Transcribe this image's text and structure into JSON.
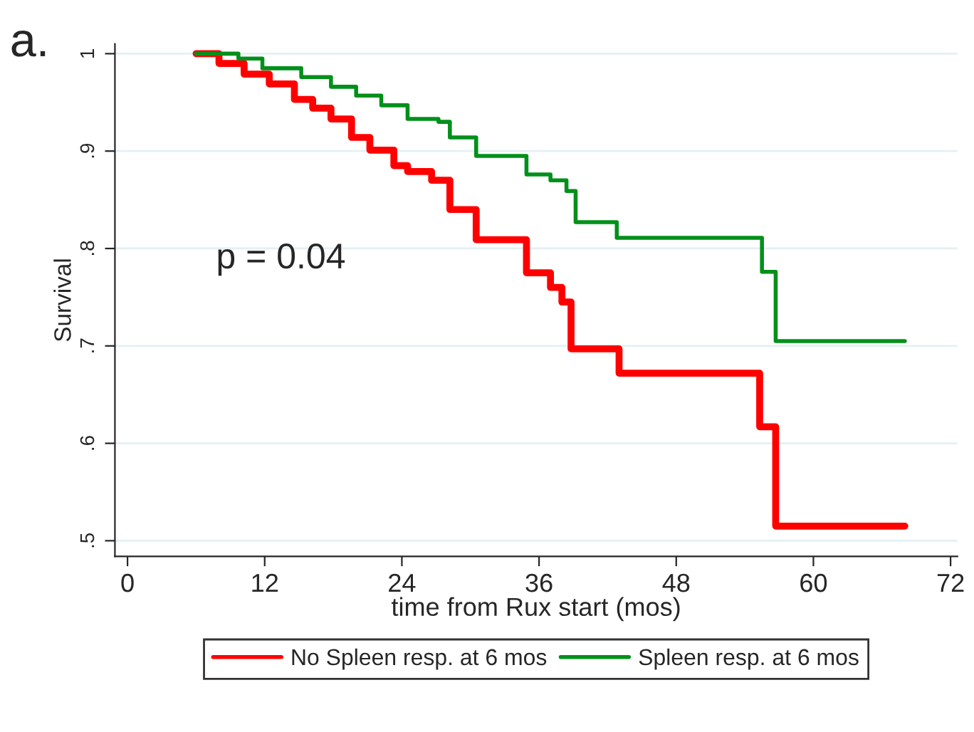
{
  "chart_data": {
    "type": "step",
    "xlabel": "time from Rux start (mos)",
    "ylabel": "Survival",
    "annotations": [
      "a.",
      "p = 0.04"
    ],
    "series": [
      {
        "name": "No Spleen resp. at 6 mos",
        "color": "#ff0000",
        "x": [
          6,
          8,
          10.2,
          12.4,
          14.6,
          16.2,
          17.8,
          19.6,
          21.2,
          23.3,
          24.5,
          26.6,
          28.2,
          30.5,
          34.9,
          37,
          38,
          38.8,
          43,
          55.3,
          56.7,
          68
        ],
        "values": [
          1,
          0.99,
          0.979,
          0.969,
          0.953,
          0.944,
          0.933,
          0.914,
          0.901,
          0.885,
          0.879,
          0.87,
          0.84,
          0.809,
          0.775,
          0.76,
          0.745,
          0.697,
          0.672,
          0.617,
          0.515,
          0.515
        ]
      },
      {
        "name": "Spleen resp. at 6 mos",
        "color": "#00901a",
        "x": [
          6,
          9.7,
          11.8,
          15.2,
          17.8,
          20,
          22.2,
          24.5,
          27.2,
          28.2,
          30.5,
          34.9,
          37,
          38.4,
          39.2,
          42.8,
          55.5,
          56.7,
          68
        ],
        "values": [
          1,
          0.995,
          0.985,
          0.976,
          0.966,
          0.957,
          0.947,
          0.933,
          0.93,
          0.914,
          0.895,
          0.876,
          0.87,
          0.859,
          0.827,
          0.811,
          0.776,
          0.705,
          0.705
        ]
      }
    ],
    "xlim": [
      -1.1,
      72.6
    ],
    "ylim": [
      0.484,
      1.01
    ],
    "xticks": [
      0,
      12,
      24,
      36,
      48,
      60,
      72
    ],
    "yticks": [
      {
        "value": 0.5,
        "label": ".5"
      },
      {
        "value": 0.6,
        "label": ".6"
      },
      {
        "value": 0.7,
        "label": ".7"
      },
      {
        "value": 0.8,
        "label": ".8"
      },
      {
        "value": 0.9,
        "label": ".9"
      },
      1
    ],
    "grid": "y",
    "legend": "bottom",
    "line_style": "solid",
    "marker": "none"
  }
}
